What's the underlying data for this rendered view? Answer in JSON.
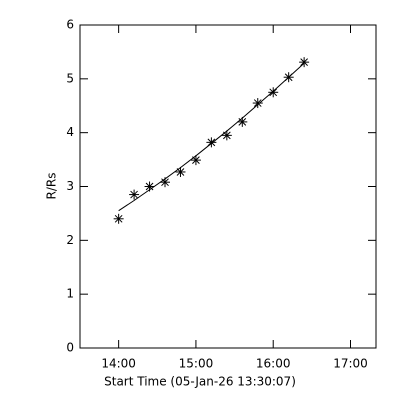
{
  "chart_data": {
    "type": "scatter",
    "x_label": "Start Time (05-Jan-26 13:30:07)",
    "y_label": "R/Rs",
    "x": [
      14.0,
      14.2,
      14.4,
      14.6,
      14.8,
      15.0,
      15.2,
      15.4,
      15.6,
      15.8,
      16.0,
      16.2,
      16.4
    ],
    "series": [
      {
        "color": "#000000",
        "marker": "asterisk",
        "values": [
          2.4,
          2.85,
          3.0,
          3.08,
          3.27,
          3.49,
          3.82,
          3.95,
          4.2,
          4.55,
          4.75,
          5.03,
          5.31
        ]
      },
      {
        "color": "#000000",
        "marker": "line",
        "values": [
          2.55,
          2.74,
          2.94,
          3.14,
          3.35,
          3.57,
          3.8,
          4.03,
          4.27,
          4.52,
          4.77,
          5.03,
          5.29
        ]
      }
    ],
    "xlim": [
      13.5,
      17.33
    ],
    "ylim": [
      0,
      6
    ],
    "xticks": [
      {
        "value": 14,
        "label": "14:00"
      },
      {
        "value": 15,
        "label": "15:00"
      },
      {
        "value": 16,
        "label": "16:00"
      },
      {
        "value": 17,
        "label": "17:00"
      }
    ],
    "yticks": [
      0,
      1,
      2,
      3,
      4,
      5,
      6
    ]
  }
}
